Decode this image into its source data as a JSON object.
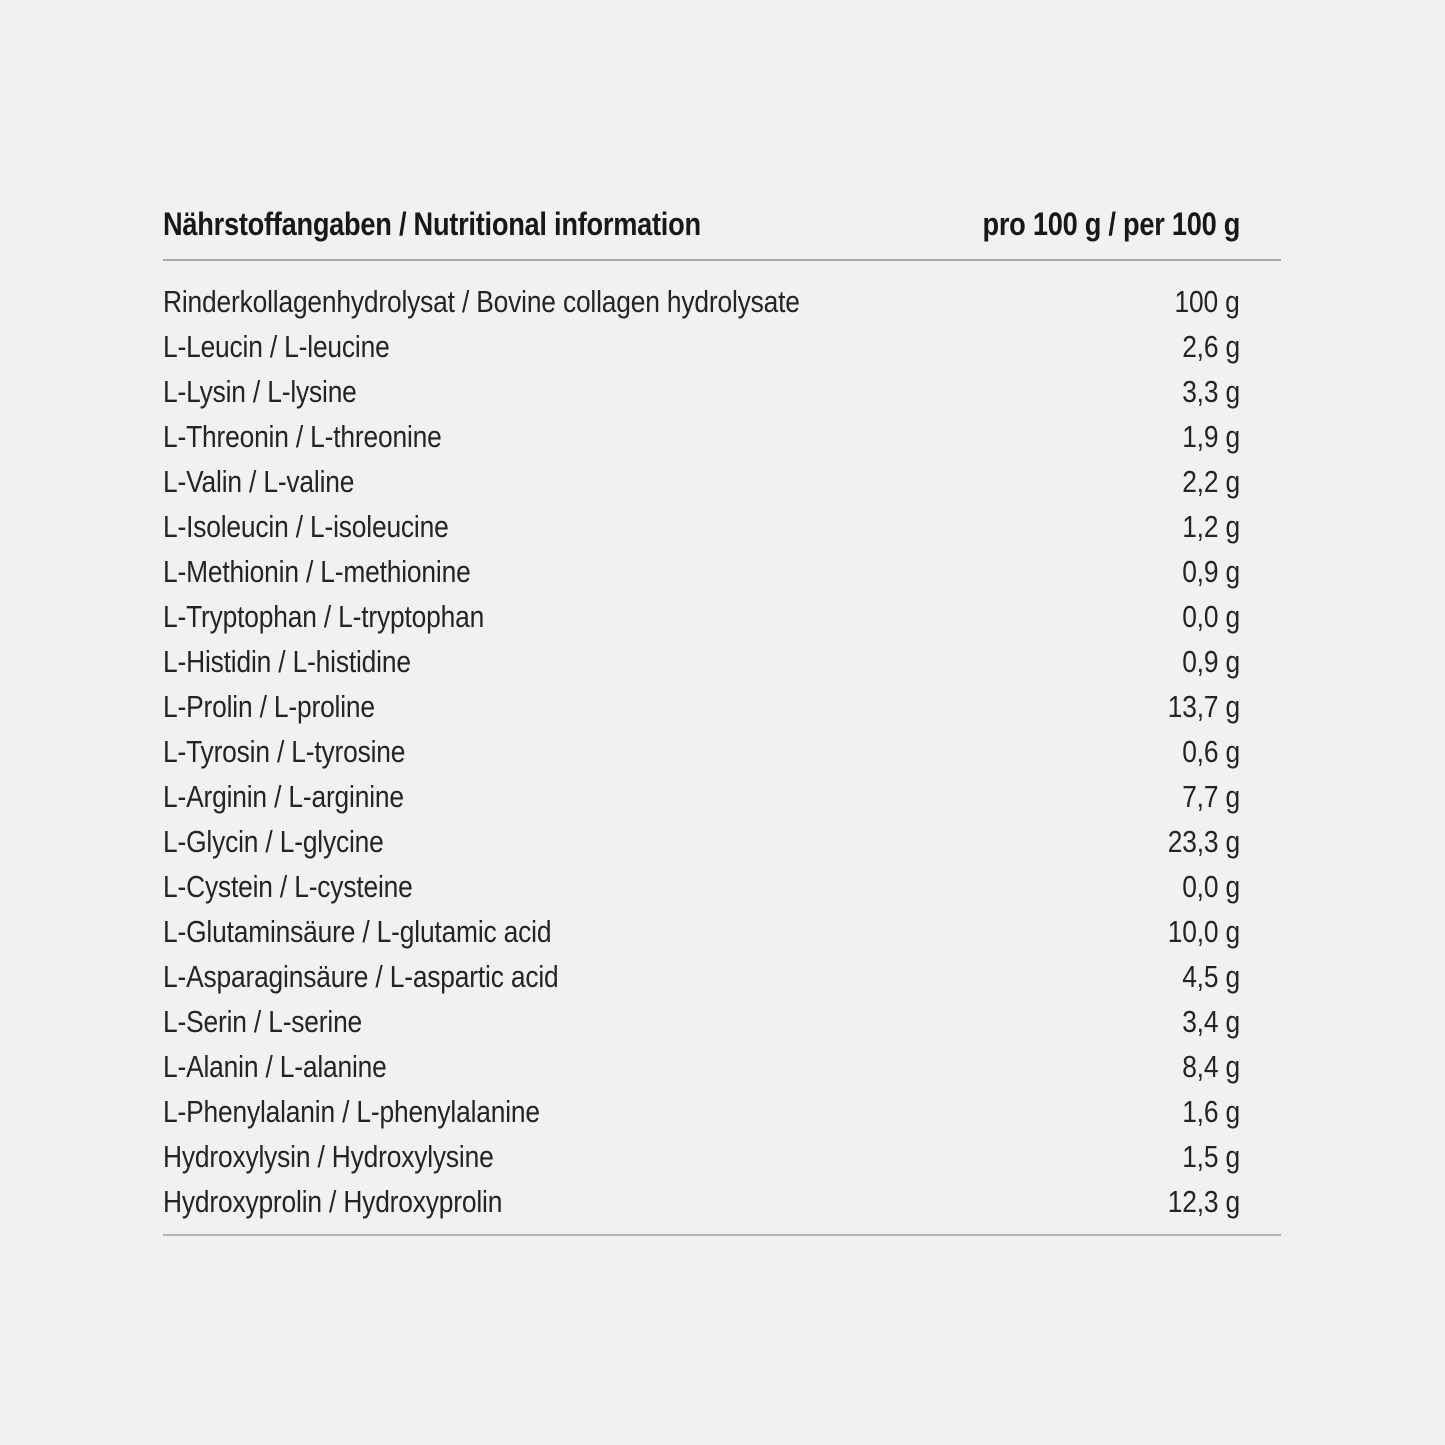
{
  "table": {
    "title": "Nährstoffangaben / Nutritional information",
    "amount_header": "pro 100 g / per 100 g",
    "rows": [
      {
        "label": "Rinderkollagenhydrolysat / Bovine collagen hydrolysate",
        "value": "100 g"
      },
      {
        "label": "L-Leucin / L-leucine",
        "value": "2,6 g"
      },
      {
        "label": "L-Lysin / L-lysine",
        "value": "3,3 g"
      },
      {
        "label": "L-Threonin / L-threonine",
        "value": "1,9 g"
      },
      {
        "label": "L-Valin / L-valine",
        "value": "2,2 g"
      },
      {
        "label": "L-Isoleucin / L-isoleucine",
        "value": "1,2 g"
      },
      {
        "label": "L-Methionin / L-methionine",
        "value": "0,9 g"
      },
      {
        "label": "L-Tryptophan / L-tryptophan",
        "value": "0,0 g"
      },
      {
        "label": "L-Histidin / L-histidine",
        "value": "0,9 g"
      },
      {
        "label": "L-Prolin / L-proline",
        "value": "13,7 g"
      },
      {
        "label": "L-Tyrosin / L-tyrosine",
        "value": "0,6 g"
      },
      {
        "label": "L-Arginin / L-arginine",
        "value": "7,7 g"
      },
      {
        "label": "L-Glycin / L-glycine",
        "value": "23,3 g"
      },
      {
        "label": "L-Cystein / L-cysteine",
        "value": "0,0 g"
      },
      {
        "label": "L-Glutaminsäure / L-glutamic acid",
        "value": "10,0 g"
      },
      {
        "label": "L-Asparaginsäure / L-aspartic acid",
        "value": "4,5 g"
      },
      {
        "label": "L-Serin / L-serine",
        "value": "3,4 g"
      },
      {
        "label": "L-Alanin / L-alanine",
        "value": "8,4 g"
      },
      {
        "label": "L-Phenylalanin / L-phenylalanine",
        "value": "1,6 g"
      },
      {
        "label": "Hydroxylysin / Hydroxylysine",
        "value": "1,5 g"
      },
      {
        "label": "Hydroxyprolin / Hydroxyprolin",
        "value": "12,3 g"
      }
    ],
    "colors": {
      "background": "#f0f1f1",
      "text": "#242424",
      "header_text": "#181818",
      "divider": "#a9a9a9"
    }
  }
}
